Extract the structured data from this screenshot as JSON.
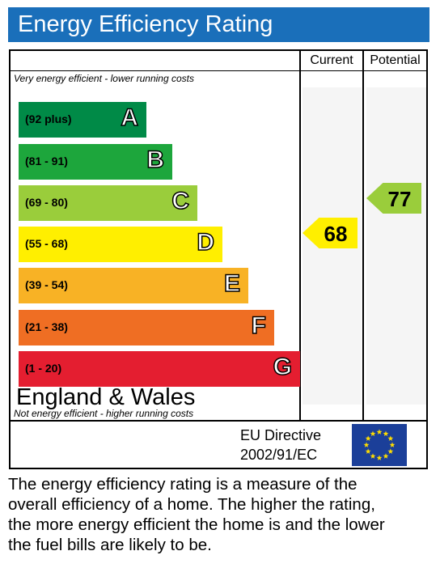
{
  "header": {
    "title": "Energy Efficiency Rating",
    "color": "#1a6fba"
  },
  "columns": {
    "current": "Current",
    "potential": "Potential"
  },
  "notes": {
    "top": "Very energy efficient - lower running costs",
    "bottom": "Not energy efficient - higher running costs"
  },
  "bands": [
    {
      "range": "(92 plus)",
      "letter": "A",
      "color": "#008a47"
    },
    {
      "range": "(81 - 91)",
      "letter": "B",
      "color": "#1da63c"
    },
    {
      "range": "(69 - 80)",
      "letter": "C",
      "color": "#9acd3b"
    },
    {
      "range": "(55 - 68)",
      "letter": "D",
      "color": "#ffef00"
    },
    {
      "range": "(39 - 54)",
      "letter": "E",
      "color": "#f8b225"
    },
    {
      "range": "(21 - 38)",
      "letter": "F",
      "color": "#ef6e23"
    },
    {
      "range": "(1 - 20)",
      "letter": "G",
      "color": "#e41e30"
    }
  ],
  "ratings": {
    "current": {
      "value": "68",
      "band": "D",
      "color": "#ffef00"
    },
    "potential": {
      "value": "77",
      "band": "C",
      "color": "#9acd3b"
    }
  },
  "footer_box": {
    "region": "England & Wales",
    "directive_line1": "EU Directive",
    "directive_line2": "2002/91/EC",
    "flag_icon": "eu-flag-icon"
  },
  "description": [
    "The energy efficiency rating is a measure of the",
    "overall efficiency of a home. The higher the rating,",
    "the more energy efficient the home is and the lower",
    "the fuel bills are likely to be."
  ]
}
